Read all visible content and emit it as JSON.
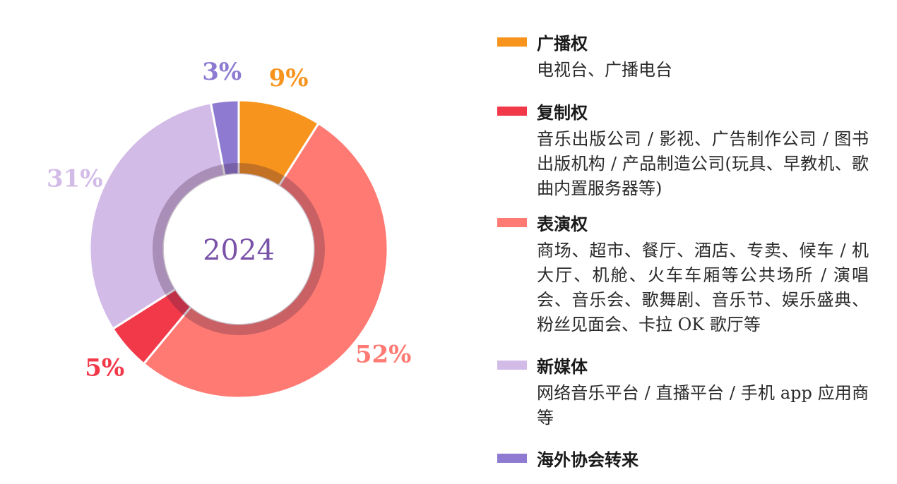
{
  "chart_data": {
    "type": "pie",
    "center_label": "2024",
    "categories": [
      "广播权",
      "复制权",
      "表演权",
      "新媒体",
      "海外协会转来"
    ],
    "values": [
      9,
      5,
      52,
      31,
      3
    ],
    "value_labels": [
      "9%",
      "5%",
      "52%",
      "31%",
      "3%"
    ],
    "slices_clockwise_from_top": [
      "广播权",
      "表演权",
      "复制权",
      "新媒体",
      "海外协会转来"
    ],
    "colors": {
      "广播权": "#f7941d",
      "复制权": "#f2394a",
      "表演权": "#ff7a73",
      "新媒体": "#d3bbe8",
      "海外协会转来": "#8e7bd1"
    },
    "legend_position": "right"
  },
  "legend": [
    {
      "title": "广播权",
      "color": "#f7941d",
      "desc": "电视台、广播电台"
    },
    {
      "title": "复制权",
      "color": "#f2394a",
      "desc": "音乐出版公司 / 影视、广告制作公司 / 图书出版机构 / 产品制造公司(玩具、早教机、歌曲内置服务器等)"
    },
    {
      "title": "表演权",
      "color": "#ff7a73",
      "desc": "商场、超市、餐厅、酒店、专卖、候车 / 机大厅、机舱、火车车厢等公共场所 / 演唱会、音乐会、歌舞剧、音乐节、娱乐盛典、粉丝见面会、卡拉 OK 歌厅等"
    },
    {
      "title": "新媒体",
      "color": "#d3bbe8",
      "desc": "网络音乐平台 / 直播平台 / 手机 app 应用商等"
    },
    {
      "title": "海外协会转来",
      "color": "#8e7bd1",
      "desc": ""
    }
  ]
}
